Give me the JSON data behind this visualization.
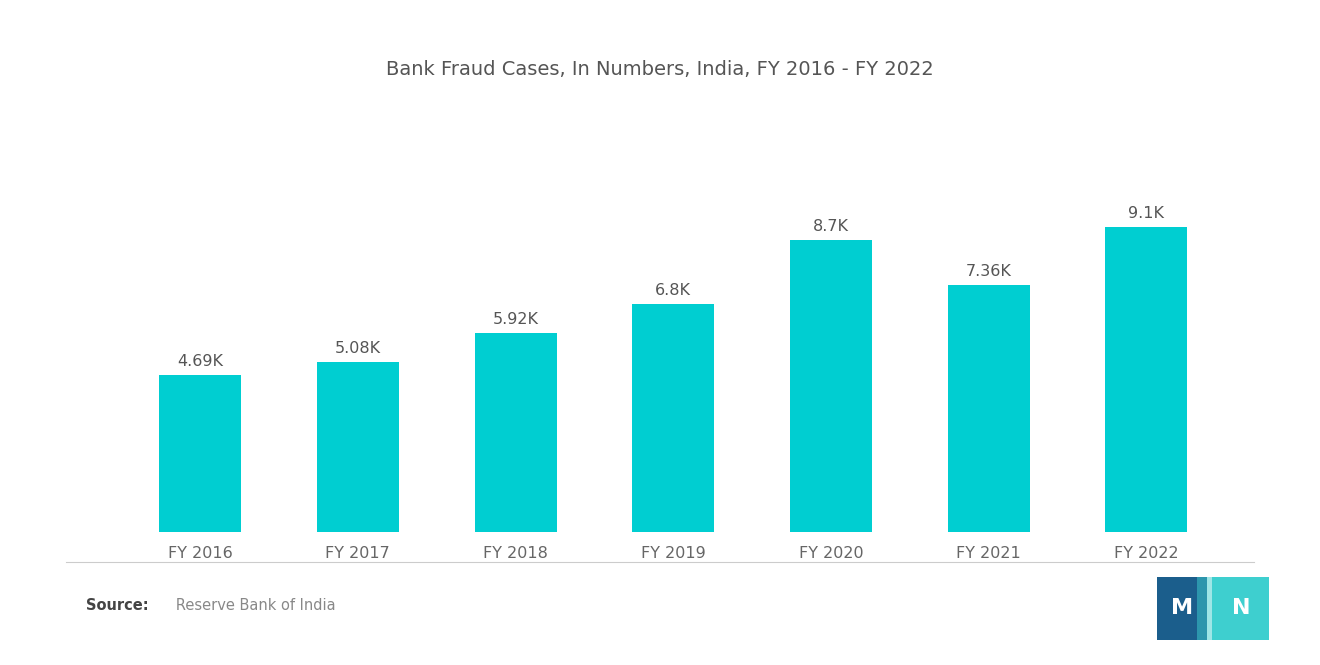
{
  "title": "Bank Fraud Cases, In Numbers, India, FY 2016 - FY 2022",
  "categories": [
    "FY 2016",
    "FY 2017",
    "FY 2018",
    "FY 2019",
    "FY 2020",
    "FY 2021",
    "FY 2022"
  ],
  "values": [
    4.69,
    5.08,
    5.92,
    6.8,
    8.7,
    7.36,
    9.1
  ],
  "labels": [
    "4.69K",
    "5.08K",
    "5.92K",
    "6.8K",
    "8.7K",
    "7.36K",
    "9.1K"
  ],
  "bar_color": "#00CED1",
  "background_color": "#ffffff",
  "title_fontsize": 14,
  "label_fontsize": 11.5,
  "tick_fontsize": 11.5,
  "source_bold": "Source:",
  "source_text": "   Reserve Bank of India",
  "source_fontsize": 10.5,
  "title_color": "#555555",
  "tick_color": "#666666",
  "label_color": "#555555",
  "source_color": "#888888",
  "ylim": [
    0,
    11.5
  ],
  "bar_width": 0.52
}
